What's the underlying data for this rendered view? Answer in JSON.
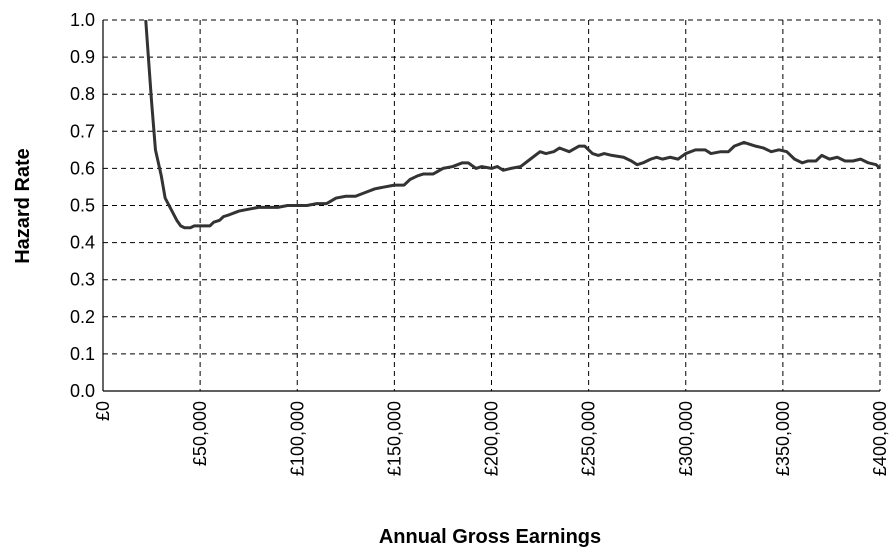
{
  "chart_data": {
    "type": "line",
    "x_label": "Annual Gross Earnings",
    "y_label": "Hazard Rate",
    "xlim": [
      0,
      400000
    ],
    "ylim": [
      0,
      1
    ],
    "xticks": [
      {
        "value": 0,
        "label": "£0"
      },
      {
        "value": 50000,
        "label": "£50,000"
      },
      {
        "value": 100000,
        "label": "£100,000"
      },
      {
        "value": 150000,
        "label": "£150,000"
      },
      {
        "value": 200000,
        "label": "£200,000"
      },
      {
        "value": 250000,
        "label": "£250,000"
      },
      {
        "value": 300000,
        "label": "£300,000"
      },
      {
        "value": 350000,
        "label": "£350,000"
      },
      {
        "value": 400000,
        "label": "£400,000"
      }
    ],
    "yticks": [
      {
        "value": 0,
        "label": "0.0"
      },
      0.1,
      0.2,
      0.3,
      0.4,
      0.5,
      0.6,
      0.7,
      0.8,
      0.9,
      {
        "value": 1,
        "label": "1.0"
      }
    ],
    "grid": true,
    "color": "#333333",
    "x": [
      22000,
      25000,
      27000,
      30000,
      32000,
      35000,
      38000,
      40000,
      42000,
      45000,
      47000,
      50000,
      55000,
      57000,
      60000,
      62000,
      65000,
      70000,
      75000,
      80000,
      85000,
      90000,
      95000,
      100000,
      105000,
      110000,
      115000,
      120000,
      125000,
      130000,
      135000,
      140000,
      145000,
      150000,
      155000,
      158000,
      162000,
      165000,
      170000,
      175000,
      180000,
      185000,
      188000,
      192000,
      195000,
      200000,
      203000,
      206000,
      210000,
      215000,
      220000,
      225000,
      228000,
      232000,
      235000,
      240000,
      245000,
      248000,
      252000,
      255000,
      258000,
      262000,
      268000,
      272000,
      275000,
      278000,
      282000,
      285000,
      288000,
      292000,
      296000,
      300000,
      305000,
      310000,
      313000,
      318000,
      322000,
      325000,
      330000,
      333000,
      336000,
      340000,
      344000,
      348000,
      352000,
      356000,
      360000,
      363000,
      367000,
      370000,
      374000,
      378000,
      382000,
      386000,
      390000,
      394000,
      398000,
      400000
    ],
    "values": [
      1.0,
      0.78,
      0.65,
      0.58,
      0.52,
      0.49,
      0.46,
      0.445,
      0.44,
      0.44,
      0.445,
      0.445,
      0.445,
      0.455,
      0.46,
      0.47,
      0.475,
      0.485,
      0.49,
      0.495,
      0.495,
      0.495,
      0.5,
      0.5,
      0.5,
      0.505,
      0.505,
      0.52,
      0.525,
      0.525,
      0.535,
      0.545,
      0.55,
      0.555,
      0.555,
      0.57,
      0.58,
      0.585,
      0.585,
      0.6,
      0.605,
      0.615,
      0.615,
      0.6,
      0.605,
      0.6,
      0.605,
      0.595,
      0.6,
      0.605,
      0.625,
      0.645,
      0.64,
      0.645,
      0.655,
      0.645,
      0.66,
      0.66,
      0.64,
      0.635,
      0.64,
      0.635,
      0.63,
      0.62,
      0.61,
      0.615,
      0.625,
      0.63,
      0.625,
      0.63,
      0.625,
      0.64,
      0.65,
      0.65,
      0.64,
      0.645,
      0.645,
      0.66,
      0.67,
      0.665,
      0.66,
      0.655,
      0.645,
      0.65,
      0.645,
      0.625,
      0.615,
      0.62,
      0.62,
      0.635,
      0.625,
      0.63,
      0.62,
      0.62,
      0.625,
      0.615,
      0.61,
      0.6
    ]
  }
}
